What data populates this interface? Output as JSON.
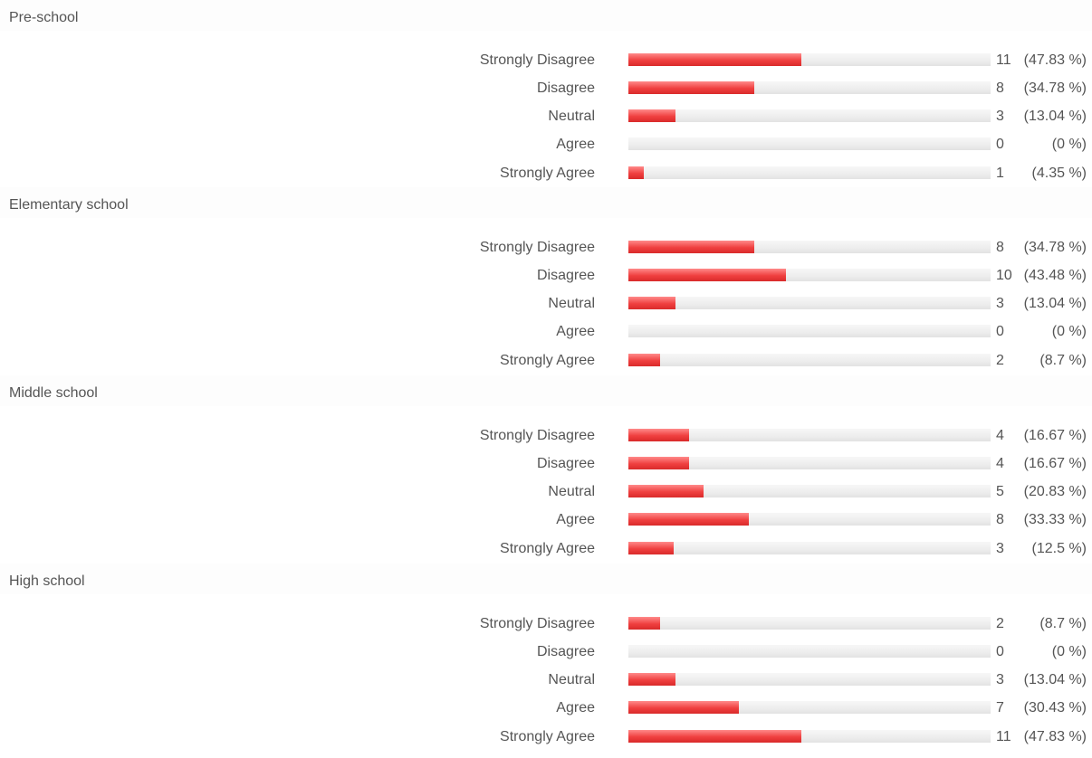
{
  "chart_data": {
    "type": "bar",
    "orientation": "horizontal",
    "categories": [
      "Strongly Disagree",
      "Disagree",
      "Neutral",
      "Agree",
      "Strongly Agree"
    ],
    "groups": [
      {
        "title": "Pre-school",
        "rows": [
          {
            "label": "Strongly Disagree",
            "count": "11",
            "percent": "(47.83 %)",
            "value": 47.83
          },
          {
            "label": "Disagree",
            "count": "8",
            "percent": "(34.78 %)",
            "value": 34.78
          },
          {
            "label": "Neutral",
            "count": "3",
            "percent": "(13.04 %)",
            "value": 13.04
          },
          {
            "label": "Agree",
            "count": "0",
            "percent": "(0 %)",
            "value": 0
          },
          {
            "label": "Strongly Agree",
            "count": "1",
            "percent": "(4.35 %)",
            "value": 4.35
          }
        ]
      },
      {
        "title": "Elementary school",
        "rows": [
          {
            "label": "Strongly Disagree",
            "count": "8",
            "percent": "(34.78 %)",
            "value": 34.78
          },
          {
            "label": "Disagree",
            "count": "10",
            "percent": "(43.48 %)",
            "value": 43.48
          },
          {
            "label": "Neutral",
            "count": "3",
            "percent": "(13.04 %)",
            "value": 13.04
          },
          {
            "label": "Agree",
            "count": "0",
            "percent": "(0 %)",
            "value": 0
          },
          {
            "label": "Strongly Agree",
            "count": "2",
            "percent": "(8.7 %)",
            "value": 8.7
          }
        ]
      },
      {
        "title": "Middle school",
        "rows": [
          {
            "label": "Strongly Disagree",
            "count": "4",
            "percent": "(16.67 %)",
            "value": 16.67
          },
          {
            "label": "Disagree",
            "count": "4",
            "percent": "(16.67 %)",
            "value": 16.67
          },
          {
            "label": "Neutral",
            "count": "5",
            "percent": "(20.83 %)",
            "value": 20.83
          },
          {
            "label": "Agree",
            "count": "8",
            "percent": "(33.33 %)",
            "value": 33.33
          },
          {
            "label": "Strongly Agree",
            "count": "3",
            "percent": "(12.5 %)",
            "value": 12.5
          }
        ]
      },
      {
        "title": "High school",
        "rows": [
          {
            "label": "Strongly Disagree",
            "count": "2",
            "percent": "(8.7 %)",
            "value": 8.7
          },
          {
            "label": "Disagree",
            "count": "0",
            "percent": "(0 %)",
            "value": 0
          },
          {
            "label": "Neutral",
            "count": "3",
            "percent": "(13.04 %)",
            "value": 13.04
          },
          {
            "label": "Agree",
            "count": "7",
            "percent": "(30.43 %)",
            "value": 30.43
          },
          {
            "label": "Strongly Agree",
            "count": "11",
            "percent": "(47.83 %)",
            "value": 47.83
          }
        ]
      }
    ],
    "xlim": [
      0,
      100
    ],
    "colors": {
      "bar": "#f04040",
      "track": "#eeeeee"
    }
  }
}
